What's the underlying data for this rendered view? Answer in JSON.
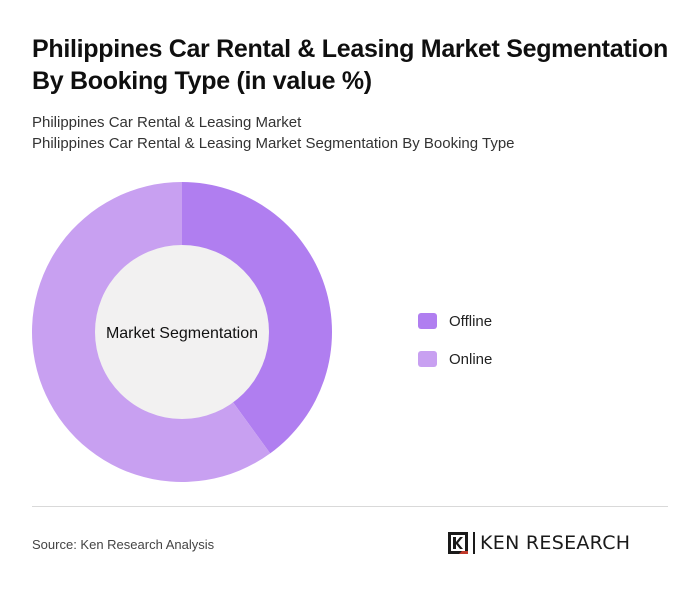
{
  "title": "Philippines Car Rental & Leasing Market Segmentation By Booking Type (in value %)",
  "subtitle_1": "Philippines Car Rental & Leasing Market",
  "subtitle_2": "Philippines Car Rental & Leasing Market Segmentation By Booking Type",
  "source": "Source: Ken Research Analysis",
  "logo": {
    "letter": "K",
    "text": "KEN RESEARCH"
  },
  "colors": {
    "offline": "#b07ef0",
    "online": "#c8a0f1",
    "center": "#f2f1f1"
  },
  "chart_data": {
    "type": "pie",
    "center_label": "Market Segmentation",
    "categories": [
      "Offline",
      "Online"
    ],
    "values": [
      40,
      60
    ],
    "legend_position": "right"
  }
}
